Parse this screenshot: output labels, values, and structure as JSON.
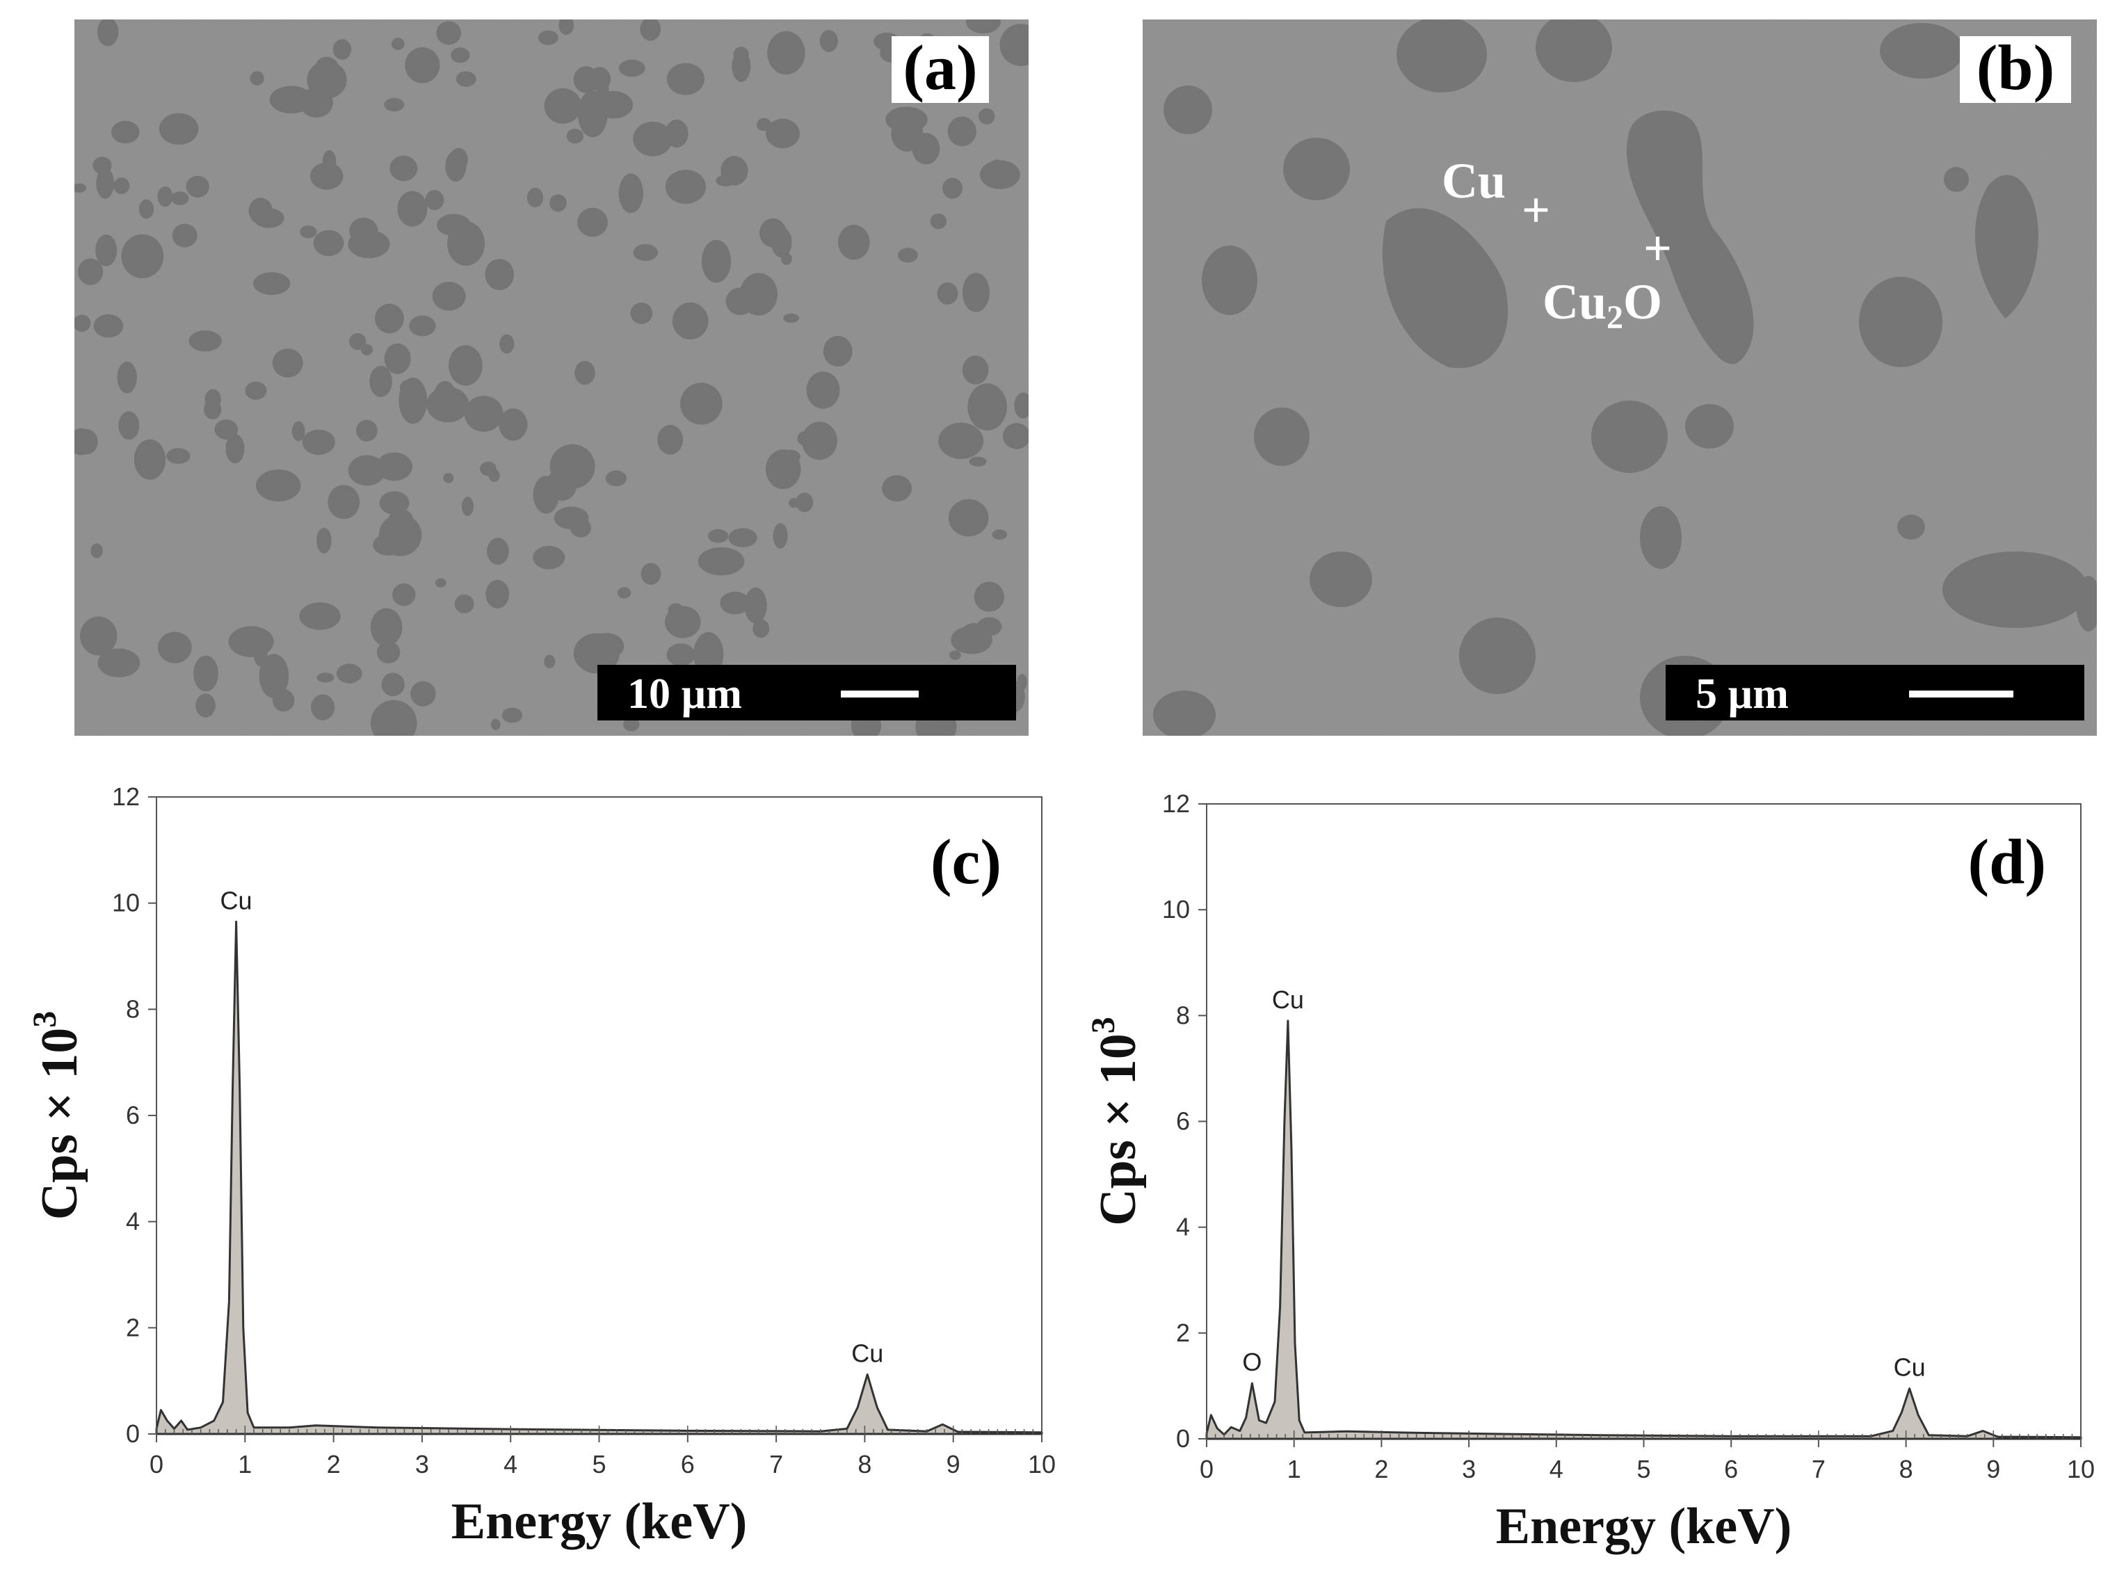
{
  "colors": {
    "sem_matrix": "#8c8c8c",
    "sem_particle": "#6f6f6f",
    "spectrum_fill": "#c8c3bd",
    "spectrum_line": "#333333",
    "scale_bar_bg": "#000000"
  },
  "panels": {
    "a": {
      "letter": "(a)",
      "scale_label": "10 µm"
    },
    "b": {
      "letter": "(b)",
      "scale_label": "5 µm",
      "phase_cu": "Cu",
      "phase_cu2o_main": "Cu",
      "phase_cu2o_sub": "2",
      "phase_cu2o_tail": "O",
      "marker_glyph": "+"
    },
    "c": {
      "letter": "(c)"
    },
    "d": {
      "letter": "(d)"
    }
  },
  "chart_data": [
    {
      "type": "area",
      "panel": "(c)",
      "xlabel": "Energy (keV)",
      "ylabel_main": "Cps × 10",
      "ylabel_sup": "3",
      "xlim": [
        0,
        10
      ],
      "ylim": [
        0,
        12
      ],
      "xticks": [
        0,
        1,
        2,
        3,
        4,
        5,
        6,
        7,
        8,
        9,
        10
      ],
      "yticks": [
        0,
        2,
        4,
        6,
        8,
        10,
        12
      ],
      "spectrum": [
        [
          0,
          0.1
        ],
        [
          0.05,
          0.45
        ],
        [
          0.12,
          0.25
        ],
        [
          0.2,
          0.1
        ],
        [
          0.28,
          0.25
        ],
        [
          0.35,
          0.08
        ],
        [
          0.5,
          0.12
        ],
        [
          0.65,
          0.25
        ],
        [
          0.75,
          0.6
        ],
        [
          0.82,
          2.5
        ],
        [
          0.86,
          6.5
        ],
        [
          0.9,
          9.65
        ],
        [
          0.94,
          6.5
        ],
        [
          0.98,
          2.0
        ],
        [
          1.03,
          0.4
        ],
        [
          1.1,
          0.12
        ],
        [
          1.5,
          0.12
        ],
        [
          1.8,
          0.16
        ],
        [
          2.5,
          0.12
        ],
        [
          4,
          0.09
        ],
        [
          6,
          0.06
        ],
        [
          7.5,
          0.05
        ],
        [
          7.8,
          0.1
        ],
        [
          7.92,
          0.5
        ],
        [
          8.03,
          1.12
        ],
        [
          8.14,
          0.5
        ],
        [
          8.26,
          0.08
        ],
        [
          8.7,
          0.05
        ],
        [
          8.88,
          0.18
        ],
        [
          9.05,
          0.04
        ],
        [
          10,
          0.03
        ]
      ],
      "peak_labels": [
        {
          "text": "Cu",
          "x": 0.9,
          "y": 9.65
        },
        {
          "text": "Cu",
          "x": 8.03,
          "y": 1.12
        }
      ]
    },
    {
      "type": "area",
      "panel": "(d)",
      "xlabel": "Energy (keV)",
      "ylabel_main": "Cps × 10",
      "ylabel_sup": "3",
      "xlim": [
        0,
        10
      ],
      "ylim": [
        0,
        12
      ],
      "xticks": [
        0,
        1,
        2,
        3,
        4,
        5,
        6,
        7,
        8,
        9,
        10
      ],
      "yticks": [
        0,
        2,
        4,
        6,
        8,
        10,
        12
      ],
      "spectrum": [
        [
          0,
          0.1
        ],
        [
          0.05,
          0.45
        ],
        [
          0.12,
          0.2
        ],
        [
          0.2,
          0.08
        ],
        [
          0.28,
          0.22
        ],
        [
          0.38,
          0.15
        ],
        [
          0.45,
          0.4
        ],
        [
          0.52,
          1.05
        ],
        [
          0.6,
          0.35
        ],
        [
          0.68,
          0.3
        ],
        [
          0.78,
          0.7
        ],
        [
          0.84,
          2.5
        ],
        [
          0.89,
          6.0
        ],
        [
          0.93,
          7.9
        ],
        [
          0.97,
          5.5
        ],
        [
          1.01,
          1.8
        ],
        [
          1.06,
          0.35
        ],
        [
          1.12,
          0.12
        ],
        [
          1.6,
          0.14
        ],
        [
          2.2,
          0.12
        ],
        [
          3,
          0.1
        ],
        [
          4.5,
          0.07
        ],
        [
          6,
          0.05
        ],
        [
          7.6,
          0.05
        ],
        [
          7.85,
          0.15
        ],
        [
          7.95,
          0.5
        ],
        [
          8.04,
          0.95
        ],
        [
          8.14,
          0.45
        ],
        [
          8.26,
          0.07
        ],
        [
          8.7,
          0.05
        ],
        [
          8.88,
          0.15
        ],
        [
          9.05,
          0.04
        ],
        [
          10,
          0.03
        ]
      ],
      "peak_labels": [
        {
          "text": "O",
          "x": 0.52,
          "y": 1.05
        },
        {
          "text": "Cu",
          "x": 0.93,
          "y": 7.9
        },
        {
          "text": "Cu",
          "x": 8.04,
          "y": 0.95
        }
      ]
    }
  ]
}
